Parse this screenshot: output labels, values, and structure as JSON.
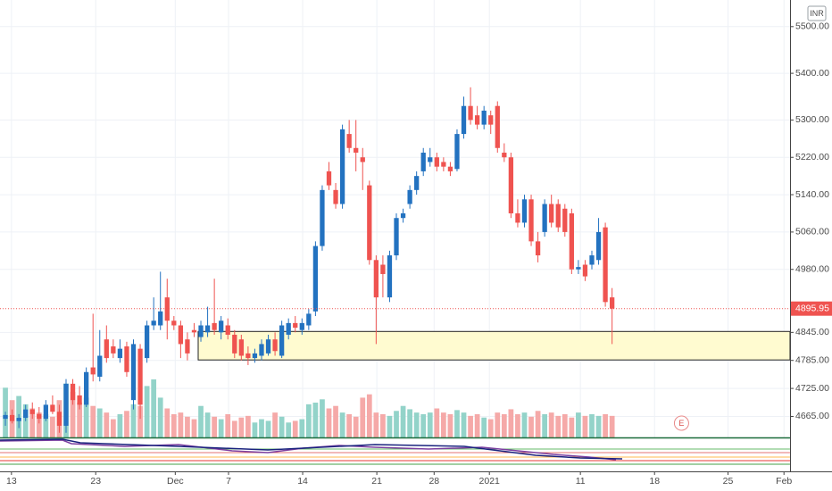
{
  "chart_data": {
    "type": "candlestick",
    "currency": "INR",
    "x": [
      0,
      1,
      2,
      3,
      4,
      5,
      6,
      7,
      8,
      9,
      10,
      11,
      12,
      13,
      14,
      15,
      16,
      17,
      18,
      19,
      20,
      21,
      22,
      23,
      24,
      25,
      26,
      27,
      28,
      29,
      30,
      31,
      32,
      33,
      34,
      35,
      36,
      37,
      38,
      39,
      40,
      41,
      42,
      43,
      44,
      45,
      46,
      47,
      48,
      49,
      50,
      51,
      52,
      53,
      54,
      55,
      56,
      57,
      58,
      59,
      60,
      61,
      62,
      63,
      64,
      65,
      66,
      67,
      68,
      69,
      70,
      71,
      72,
      73,
      74,
      75,
      76,
      77,
      78,
      79,
      80,
      81,
      82,
      83,
      84,
      85,
      86,
      87,
      88,
      89,
      90
    ],
    "open": [
      4660,
      4668,
      4655,
      4662,
      4680,
      4670,
      4660,
      4690,
      4675,
      4645,
      4735,
      4710,
      4690,
      4770,
      4750,
      4830,
      4815,
      4790,
      4815,
      4700,
      4810,
      4790,
      4860,
      4860,
      4920,
      4870,
      4860,
      4830,
      4850,
      4835,
      4845,
      4865,
      4845,
      4860,
      4840,
      4830,
      4800,
      4790,
      4795,
      4800,
      4830,
      4795,
      4840,
      4865,
      4850,
      4860,
      4890,
      5030,
      5190,
      5150,
      5120,
      5270,
      5240,
      5220,
      5160,
      5000,
      4990,
      4920,
      5010,
      5090,
      5120,
      5150,
      5190,
      5210,
      5220,
      5210,
      5200,
      5195,
      5270,
      5330,
      5310,
      5290,
      5310,
      5330,
      5230,
      5220,
      5100,
      5080,
      5130,
      5040,
      5060,
      5120,
      5120,
      5110,
      5100,
      4980,
      4990,
      4990,
      5000,
      5070,
      4920
    ],
    "high": [
      4675,
      4680,
      4670,
      4690,
      4695,
      4685,
      4700,
      4710,
      4690,
      4745,
      4745,
      4730,
      4770,
      4885,
      4850,
      4860,
      4830,
      4830,
      4825,
      4830,
      4820,
      4870,
      4920,
      4975,
      4960,
      4880,
      4870,
      4845,
      4865,
      4870,
      4900,
      4960,
      4880,
      4875,
      4850,
      4840,
      4815,
      4810,
      4830,
      4840,
      4845,
      4870,
      4875,
      4880,
      4875,
      4895,
      5040,
      5160,
      5210,
      5165,
      5290,
      5300,
      5300,
      5240,
      5170,
      5010,
      5010,
      5020,
      5100,
      5110,
      5160,
      5190,
      5240,
      5240,
      5230,
      5220,
      5210,
      5280,
      5350,
      5370,
      5330,
      5330,
      5320,
      5340,
      5250,
      5230,
      5130,
      5140,
      5140,
      5060,
      5130,
      5140,
      5130,
      5120,
      5110,
      5000,
      5000,
      5020,
      5090,
      5080,
      4940
    ],
    "low": [
      4645,
      4650,
      4640,
      4655,
      4660,
      4650,
      4655,
      4670,
      4630,
      4630,
      4690,
      4680,
      4685,
      4740,
      4740,
      4780,
      4790,
      4780,
      4750,
      4680,
      4660,
      4780,
      4850,
      4850,
      4830,
      4850,
      4790,
      4785,
      4835,
      4825,
      4835,
      4840,
      4830,
      4830,
      4790,
      4785,
      4775,
      4780,
      4785,
      4795,
      4795,
      4790,
      4830,
      4845,
      4840,
      4850,
      4880,
      5020,
      5150,
      5110,
      5110,
      5230,
      5190,
      5150,
      4990,
      4820,
      4920,
      4910,
      5000,
      5080,
      5110,
      5140,
      5180,
      5200,
      5190,
      5190,
      5180,
      5190,
      5260,
      5290,
      5280,
      5280,
      5270,
      5230,
      5210,
      5090,
      5070,
      5070,
      5030,
      4995,
      5050,
      5070,
      5060,
      5050,
      4970,
      4970,
      4955,
      4980,
      4990,
      4900,
      4820
    ],
    "close": [
      4668,
      4655,
      4662,
      4680,
      4670,
      4660,
      4690,
      4675,
      4645,
      4735,
      4700,
      4690,
      4760,
      4755,
      4795,
      4790,
      4800,
      4810,
      4760,
      4820,
      4690,
      4860,
      4870,
      4890,
      4870,
      4860,
      4820,
      4800,
      4845,
      4860,
      4860,
      4850,
      4870,
      4840,
      4800,
      4795,
      4790,
      4800,
      4820,
      4830,
      4805,
      4860,
      4865,
      4855,
      4865,
      4885,
      5030,
      5150,
      5160,
      5120,
      5280,
      5240,
      5230,
      5210,
      5000,
      4920,
      4970,
      5010,
      5090,
      5100,
      5150,
      5180,
      5230,
      5220,
      5200,
      5200,
      5190,
      5270,
      5330,
      5300,
      5290,
      5320,
      5290,
      5240,
      5220,
      5100,
      5080,
      5130,
      5040,
      5010,
      5120,
      5080,
      5070,
      5060,
      4980,
      4985,
      4965,
      5010,
      5060,
      4910,
      4895.95
    ],
    "volume": [
      60,
      45,
      50,
      40,
      35,
      30,
      28,
      25,
      45,
      65,
      55,
      42,
      48,
      38,
      35,
      30,
      22,
      28,
      32,
      40,
      38,
      62,
      70,
      48,
      35,
      28,
      30,
      25,
      22,
      38,
      30,
      25,
      22,
      28,
      20,
      24,
      26,
      18,
      22,
      20,
      30,
      25,
      18,
      20,
      22,
      40,
      42,
      46,
      35,
      38,
      30,
      28,
      25,
      48,
      52,
      30,
      28,
      26,
      32,
      38,
      34,
      30,
      28,
      30,
      35,
      30,
      28,
      33,
      30,
      26,
      28,
      24,
      22,
      30,
      28,
      34,
      28,
      30,
      25,
      32,
      28,
      30,
      26,
      28,
      24,
      30,
      26,
      28,
      26,
      28,
      26
    ],
    "up_color": "#2372c0",
    "down_color": "#ef5350",
    "volume_up_color": "#93d3c9",
    "volume_down_color": "#f5a9a8",
    "last_price": 4895.95,
    "zone": {
      "x_start": 28.6,
      "low": 4786,
      "high": 4847,
      "color": "#fffbd0"
    },
    "events": [
      {
        "x": 100.3,
        "label": "E"
      }
    ],
    "xlim": [
      -0.8,
      116.4
    ],
    "xticks": [
      {
        "value": 0.9,
        "label": "13"
      },
      {
        "value": 13.4,
        "label": "23"
      },
      {
        "value": 25.2,
        "label": "Dec"
      },
      {
        "value": 33.1,
        "label": "7"
      },
      {
        "value": 44.1,
        "label": "14"
      },
      {
        "value": 55.1,
        "label": "21"
      },
      {
        "value": 63.6,
        "label": "28"
      },
      {
        "value": 71.8,
        "label": "2021"
      },
      {
        "value": 85.3,
        "label": "11"
      },
      {
        "value": 96.3,
        "label": "18"
      },
      {
        "value": 107.2,
        "label": "25"
      },
      {
        "value": 115.5,
        "label": "Feb"
      }
    ],
    "ylim": [
      4620,
      5557
    ],
    "yticks": [
      {
        "value": 5500,
        "label": "5500.00"
      },
      {
        "value": 5400,
        "label": "5400.00"
      },
      {
        "value": 5300,
        "label": "5300.00"
      },
      {
        "value": 5220,
        "label": "5220.00"
      },
      {
        "value": 5140,
        "label": "5140.00"
      },
      {
        "value": 5060,
        "label": "5060.00"
      },
      {
        "value": 4980,
        "label": "4980.00"
      },
      {
        "value": 4845,
        "label": "4845.00"
      },
      {
        "value": 4785,
        "label": "4785.00"
      },
      {
        "value": 4725,
        "label": "4725.00"
      },
      {
        "value": 4665,
        "label": "4665.00"
      }
    ],
    "grid": true
  }
}
